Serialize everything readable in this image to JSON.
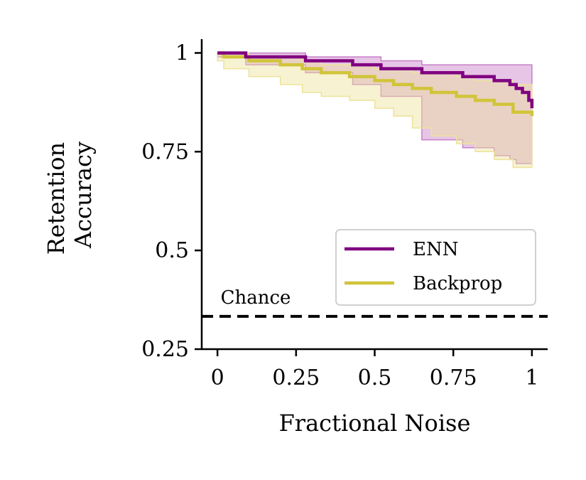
{
  "chart_data": {
    "type": "line",
    "title": "",
    "xlabel": "Fractional Noise",
    "ylabel_lines": [
      "Retention",
      "Accuracy"
    ],
    "xlim": [
      -0.05,
      1.05
    ],
    "ylim": [
      0.25,
      1.035
    ],
    "xticks": [
      0,
      0.25,
      0.5,
      0.75,
      1
    ],
    "xtick_labels": [
      "0",
      "0.25",
      "0.5",
      "0.75",
      "1"
    ],
    "yticks": [
      0.25,
      0.5,
      0.75,
      1
    ],
    "ytick_labels": [
      "0.25",
      "0.5",
      "0.75",
      "1"
    ],
    "grid": false,
    "legend_position": "lower-right",
    "chance": {
      "y": 0.333,
      "label": "Chance",
      "color": "#000000"
    },
    "series": [
      {
        "name": "ENN",
        "color": "#800080",
        "band_color": "#c77fc7",
        "x": [
          0,
          0.09,
          0.28,
          0.43,
          0.52,
          0.65,
          0.78,
          0.88,
          0.93,
          0.95,
          0.97,
          0.99,
          1.0
        ],
        "y": [
          1.0,
          0.99,
          0.98,
          0.97,
          0.96,
          0.95,
          0.94,
          0.93,
          0.92,
          0.91,
          0.9,
          0.88,
          0.86
        ],
        "lower": [
          1.0,
          0.99,
          0.97,
          0.95,
          0.92,
          0.89,
          0.78,
          0.76,
          0.74,
          0.73,
          0.72,
          0.72,
          0.72
        ],
        "upper": [
          1.0,
          1.0,
          0.99,
          0.99,
          0.98,
          0.97,
          0.97,
          0.97,
          0.97,
          0.97,
          0.97,
          0.97,
          0.97
        ]
      },
      {
        "name": "Backprop",
        "color": "#d1c43a",
        "band_color": "#ede39a",
        "x": [
          0,
          0.02,
          0.1,
          0.2,
          0.27,
          0.33,
          0.42,
          0.5,
          0.56,
          0.62,
          0.68,
          0.76,
          0.82,
          0.88,
          0.94,
          1.0
        ],
        "y": [
          1.0,
          0.99,
          0.98,
          0.97,
          0.96,
          0.95,
          0.94,
          0.93,
          0.92,
          0.91,
          0.9,
          0.89,
          0.88,
          0.87,
          0.85,
          0.84
        ],
        "lower": [
          1.0,
          0.98,
          0.96,
          0.94,
          0.92,
          0.9,
          0.89,
          0.88,
          0.86,
          0.84,
          0.81,
          0.79,
          0.77,
          0.75,
          0.73,
          0.71
        ],
        "upper": [
          1.0,
          1.0,
          0.99,
          0.99,
          0.98,
          0.97,
          0.97,
          0.96,
          0.96,
          0.95,
          0.95,
          0.94,
          0.93,
          0.93,
          0.92,
          0.91
        ]
      }
    ]
  }
}
